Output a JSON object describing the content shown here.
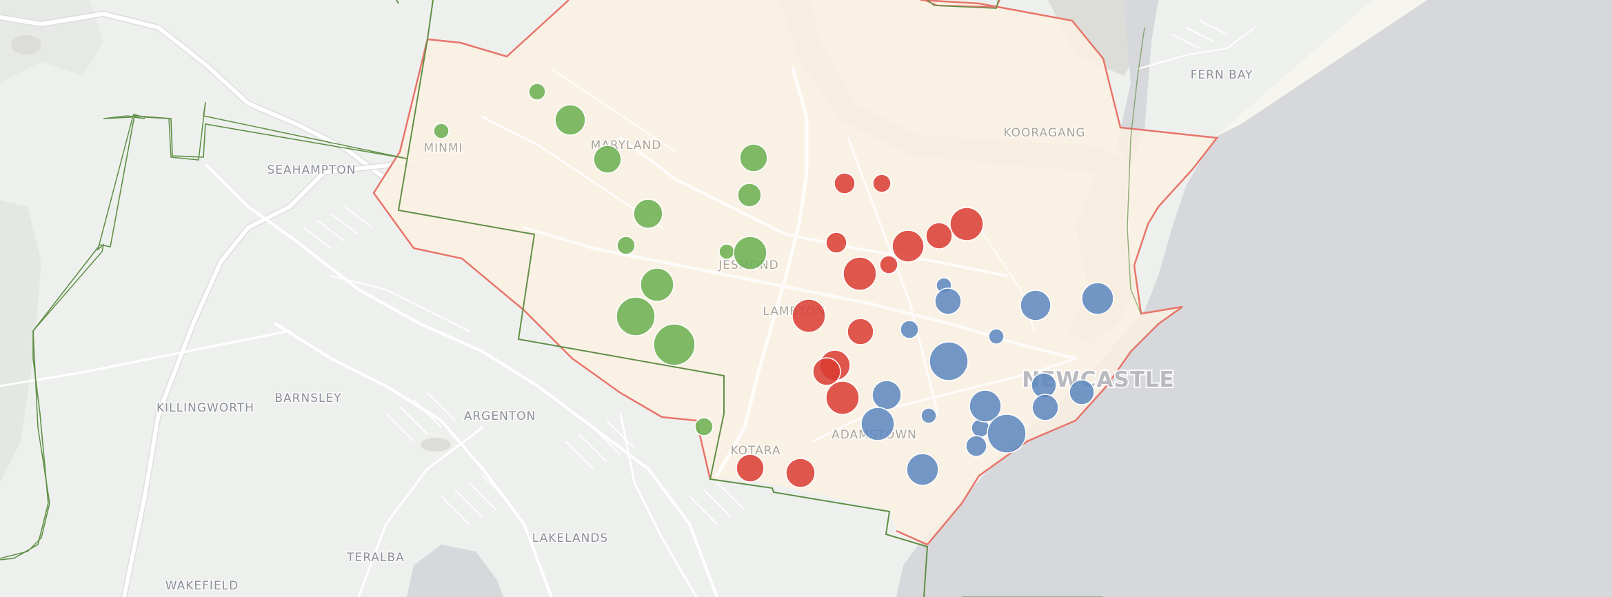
{
  "colors": {
    "land": "#eef0ee",
    "sea": "#d6d8db",
    "river": "#dcdcd8",
    "road": "#ffffff",
    "region_fill": "#fbf1e3",
    "region_border": "#e8746a",
    "ward_border": "#5f8f45",
    "green": "#6aaf50",
    "red": "#d93b33",
    "blue": "#5b86be",
    "label": "#8c8f99",
    "city_label": "#b9bac0"
  },
  "places": [
    {
      "name": "FERN BAY",
      "kind": "outside"
    },
    {
      "name": "KOORAGANG",
      "kind": "inside"
    },
    {
      "name": "MINMI",
      "kind": "inside"
    },
    {
      "name": "MARYLAND",
      "kind": "inside"
    },
    {
      "name": "SEAHAMPTON",
      "kind": "outside"
    },
    {
      "name": "JESMOND",
      "kind": "inside"
    },
    {
      "name": "LAMBTON",
      "kind": "inside"
    },
    {
      "name": "NEWCASTLE",
      "kind": "city"
    },
    {
      "name": "KILLINGWORTH",
      "kind": "outside"
    },
    {
      "name": "BARNSLEY",
      "kind": "outside"
    },
    {
      "name": "ARGENTON",
      "kind": "outside"
    },
    {
      "name": "KOTARA",
      "kind": "inside"
    },
    {
      "name": "ADAMSTOWN",
      "kind": "inside"
    },
    {
      "name": "LAKELANDS",
      "kind": "outside"
    },
    {
      "name": "TERALBA",
      "kind": "outside"
    },
    {
      "name": "WAKEFIELD",
      "kind": "outside"
    }
  ],
  "markers": [
    {
      "group": "green",
      "size": 12
    },
    {
      "group": "green",
      "size": 11
    },
    {
      "group": "green",
      "size": 22
    },
    {
      "group": "green",
      "size": 20
    },
    {
      "group": "green",
      "size": 20
    },
    {
      "group": "green",
      "size": 17
    },
    {
      "group": "green",
      "size": 21
    },
    {
      "group": "green",
      "size": 13
    },
    {
      "group": "green",
      "size": 11
    },
    {
      "group": "green",
      "size": 24
    },
    {
      "group": "green",
      "size": 24
    },
    {
      "group": "green",
      "size": 28
    },
    {
      "group": "green",
      "size": 30
    },
    {
      "group": "green",
      "size": 13
    },
    {
      "group": "red",
      "size": 15
    },
    {
      "group": "red",
      "size": 13
    },
    {
      "group": "red",
      "size": 24
    },
    {
      "group": "red",
      "size": 19
    },
    {
      "group": "red",
      "size": 23
    },
    {
      "group": "red",
      "size": 15
    },
    {
      "group": "red",
      "size": 13
    },
    {
      "group": "red",
      "size": 24
    },
    {
      "group": "red",
      "size": 24
    },
    {
      "group": "red",
      "size": 19
    },
    {
      "group": "red",
      "size": 22
    },
    {
      "group": "red",
      "size": 20
    },
    {
      "group": "red",
      "size": 24
    },
    {
      "group": "red",
      "size": 20
    },
    {
      "group": "red",
      "size": 21
    },
    {
      "group": "blue",
      "size": 11
    },
    {
      "group": "blue",
      "size": 19
    },
    {
      "group": "blue",
      "size": 22
    },
    {
      "group": "blue",
      "size": 23
    },
    {
      "group": "blue",
      "size": 13
    },
    {
      "group": "blue",
      "size": 11
    },
    {
      "group": "blue",
      "size": 28
    },
    {
      "group": "blue",
      "size": 18
    },
    {
      "group": "blue",
      "size": 18
    },
    {
      "group": "blue",
      "size": 21
    },
    {
      "group": "blue",
      "size": 24
    },
    {
      "group": "blue",
      "size": 19
    },
    {
      "group": "blue",
      "size": 11
    },
    {
      "group": "blue",
      "size": 13
    },
    {
      "group": "blue",
      "size": 23
    },
    {
      "group": "blue",
      "size": 28
    },
    {
      "group": "blue",
      "size": 15
    },
    {
      "group": "blue",
      "size": 23
    }
  ]
}
